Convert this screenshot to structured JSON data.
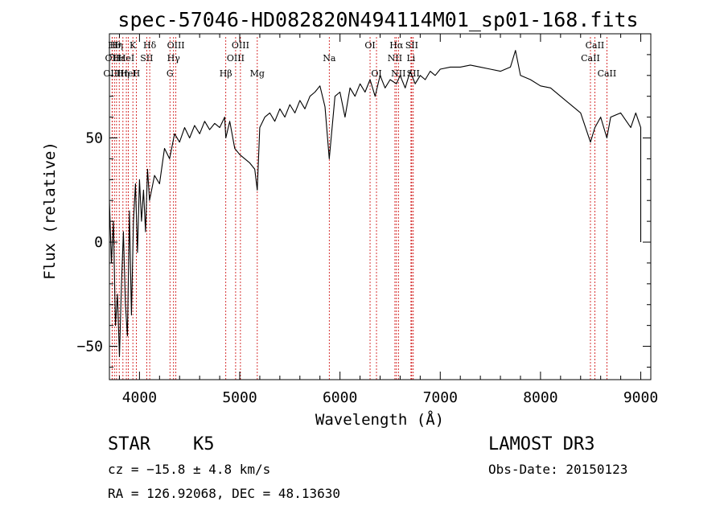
{
  "chart_data": {
    "type": "line",
    "title": "spec-57046-HD082820N494114M01_sp01-168.fits",
    "xlabel": "Wavelength (Å)",
    "ylabel": "Flux (relative)",
    "xlim": [
      3700,
      9100
    ],
    "ylim": [
      -66,
      100
    ],
    "x_ticks": [
      4000,
      5000,
      6000,
      7000,
      8000,
      9000
    ],
    "y_ticks": [
      -50,
      0,
      50
    ],
    "grid": false,
    "line_color": "#000000",
    "marker_color": "#cc0000",
    "series": [
      {
        "x": [
          3700,
          3720,
          3740,
          3760,
          3780,
          3800,
          3820,
          3840,
          3860,
          3880,
          3900,
          3920,
          3940,
          3960,
          3980,
          4000,
          4020,
          4040,
          4060,
          4080,
          4100,
          4150,
          4200,
          4250,
          4300,
          4350,
          4400,
          4450,
          4500,
          4550,
          4600,
          4650,
          4700,
          4750,
          4800,
          4850,
          4861,
          4900,
          4950,
          5000,
          5050,
          5100,
          5150,
          5175,
          5200,
          5250,
          5300,
          5350,
          5400,
          5450,
          5500,
          5550,
          5600,
          5650,
          5700,
          5750,
          5800,
          5850,
          5893,
          5950,
          6000,
          6050,
          6100,
          6150,
          6200,
          6250,
          6300,
          6350,
          6400,
          6450,
          6500,
          6563,
          6600,
          6650,
          6700,
          6750,
          6800,
          6850,
          6900,
          6950,
          7000,
          7100,
          7200,
          7300,
          7400,
          7500,
          7600,
          7700,
          7750,
          7800,
          7900,
          8000,
          8100,
          8200,
          8300,
          8400,
          8498,
          8542,
          8600,
          8662,
          8700,
          8800,
          8900,
          8950,
          9000,
          9000
        ],
        "y": [
          20,
          -10,
          10,
          -40,
          -25,
          -55,
          -20,
          5,
          -30,
          -45,
          15,
          -35,
          10,
          28,
          -5,
          30,
          10,
          25,
          5,
          35,
          20,
          32,
          28,
          45,
          40,
          52,
          48,
          55,
          50,
          56,
          52,
          58,
          54,
          57,
          55,
          60,
          50,
          58,
          45,
          42,
          40,
          38,
          35,
          25,
          55,
          60,
          62,
          58,
          64,
          60,
          66,
          62,
          68,
          64,
          70,
          72,
          75,
          65,
          40,
          70,
          72,
          60,
          74,
          70,
          76,
          72,
          78,
          70,
          80,
          74,
          78,
          76,
          80,
          74,
          82,
          76,
          80,
          78,
          82,
          80,
          83,
          84,
          84,
          85,
          84,
          83,
          82,
          84,
          92,
          80,
          78,
          75,
          74,
          70,
          66,
          62,
          48,
          55,
          60,
          50,
          60,
          62,
          55,
          62,
          55,
          0
        ]
      }
    ],
    "line_markers": [
      {
        "x": 3727,
        "row": 1,
        "label": "OII"
      },
      {
        "x": 3727,
        "row": 2,
        "label": "OIII"
      },
      {
        "x": 3750,
        "row": 0,
        "label": "Hθ"
      },
      {
        "x": 3771,
        "row": 0,
        "label": "Hη"
      },
      {
        "x": 3798,
        "row": 1,
        "label": "Hε"
      },
      {
        "x": 3835,
        "row": 2,
        "label": "Hη"
      },
      {
        "x": 3869,
        "row": 1,
        "label": "HeI"
      },
      {
        "x": 3889,
        "row": 2,
        "label": "HeI"
      },
      {
        "x": 3934,
        "row": 0,
        "label": "K"
      },
      {
        "x": 3968,
        "row": 2,
        "label": "H"
      },
      {
        "x": 4072,
        "row": 1,
        "label": "SII"
      },
      {
        "x": 4102,
        "row": 0,
        "label": "Hδ"
      },
      {
        "x": 4304,
        "row": 2,
        "label": "G"
      },
      {
        "x": 4340,
        "row": 1,
        "label": "Hγ"
      },
      {
        "x": 4363,
        "row": 0,
        "label": "OIII"
      },
      {
        "x": 4861,
        "row": 2,
        "label": "Hβ"
      },
      {
        "x": 4959,
        "row": 1,
        "label": "OIII"
      },
      {
        "x": 5007,
        "row": 0,
        "label": "OIII"
      },
      {
        "x": 5175,
        "row": 2,
        "label": "Mg"
      },
      {
        "x": 5893,
        "row": 1,
        "label": "Na"
      },
      {
        "x": 6300,
        "row": 0,
        "label": "OI"
      },
      {
        "x": 6364,
        "row": 2,
        "label": "OI"
      },
      {
        "x": 6548,
        "row": 1,
        "label": "NII"
      },
      {
        "x": 6563,
        "row": 0,
        "label": "Hα"
      },
      {
        "x": 6583,
        "row": 2,
        "label": "NII"
      },
      {
        "x": 6708,
        "row": 1,
        "label": "Li"
      },
      {
        "x": 6716,
        "row": 0,
        "label": "SII"
      },
      {
        "x": 6731,
        "row": 2,
        "label": "SII"
      },
      {
        "x": 8498,
        "row": 1,
        "label": "CaII"
      },
      {
        "x": 8542,
        "row": 0,
        "label": "CaII"
      },
      {
        "x": 8662,
        "row": 2,
        "label": "CaII"
      }
    ]
  },
  "info": {
    "class_label": "STAR",
    "subclass_label": "K5",
    "cz_text": "cz = −15.8 ± 4.8 km/s",
    "radec_text": "RA = 126.92068, DEC =  48.13630",
    "survey_label": "LAMOST DR3",
    "obs_date_text": "Obs-Date: 20150123"
  }
}
